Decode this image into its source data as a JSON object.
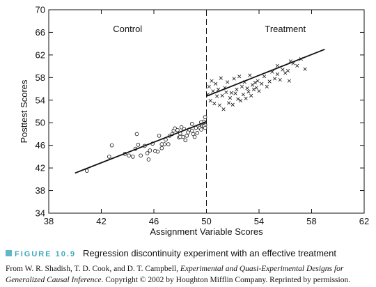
{
  "chart_data": {
    "type": "scatter",
    "xlabel": "Assignment Variable Scores",
    "ylabel": "Posttest Scores",
    "xlim": [
      38,
      62
    ],
    "ylim": [
      34,
      70
    ],
    "xticks": [
      38,
      42,
      46,
      50,
      54,
      58,
      62
    ],
    "yticks": [
      34,
      38,
      42,
      46,
      50,
      54,
      58,
      62,
      66,
      70
    ],
    "cutoff": 50,
    "annotations": [
      "Control",
      "Treatment"
    ],
    "series": [
      {
        "name": "Control",
        "marker": "circle",
        "points": [
          [
            40.9,
            41.5
          ],
          [
            42.6,
            44.0
          ],
          [
            42.8,
            46.0
          ],
          [
            43.8,
            44.5
          ],
          [
            44.1,
            44.2
          ],
          [
            44.4,
            44.0
          ],
          [
            44.6,
            45.4
          ],
          [
            44.8,
            46.1
          ],
          [
            44.7,
            48.0
          ],
          [
            45.0,
            44.2
          ],
          [
            45.3,
            45.9
          ],
          [
            45.5,
            44.6
          ],
          [
            45.6,
            43.5
          ],
          [
            45.7,
            45.1
          ],
          [
            45.9,
            46.3
          ],
          [
            46.1,
            45.0
          ],
          [
            46.3,
            44.9
          ],
          [
            46.4,
            47.7
          ],
          [
            46.6,
            45.5
          ],
          [
            46.8,
            46.2
          ],
          [
            46.9,
            47.0
          ],
          [
            47.1,
            46.2
          ],
          [
            47.2,
            47.7
          ],
          [
            47.4,
            48.0
          ],
          [
            47.5,
            48.6
          ],
          [
            47.6,
            49.0
          ],
          [
            47.8,
            48.7
          ],
          [
            48.0,
            48.1
          ],
          [
            48.1,
            49.2
          ],
          [
            48.2,
            47.5
          ],
          [
            48.4,
            46.9
          ],
          [
            48.5,
            47.7
          ],
          [
            48.6,
            48.3
          ],
          [
            48.7,
            48.8
          ],
          [
            48.9,
            48.6
          ],
          [
            49.0,
            48.0
          ],
          [
            49.1,
            47.5
          ],
          [
            49.2,
            49.1
          ],
          [
            49.3,
            48.2
          ],
          [
            49.4,
            49.4
          ],
          [
            49.5,
            49.1
          ],
          [
            49.6,
            48.8
          ],
          [
            49.7,
            49.4
          ],
          [
            49.8,
            50.2
          ],
          [
            49.9,
            51.0
          ],
          [
            49.9,
            49.6
          ],
          [
            48.3,
            48.9
          ],
          [
            47.9,
            47.4
          ],
          [
            48.9,
            49.8
          ],
          [
            49.6,
            50.1
          ],
          [
            46.6,
            46.2
          ],
          [
            48.0,
            47.5
          ],
          [
            49.8,
            49.4
          ],
          [
            49.9,
            49.1
          ]
        ],
        "fit_line": [
          [
            40,
            41.1
          ],
          [
            50,
            50.2
          ]
        ]
      },
      {
        "name": "Treatment",
        "marker": "x",
        "points": [
          [
            50.1,
            55.0
          ],
          [
            50.2,
            56.4
          ],
          [
            50.3,
            53.9
          ],
          [
            50.4,
            57.4
          ],
          [
            50.5,
            55.6
          ],
          [
            50.6,
            53.4
          ],
          [
            50.7,
            56.9
          ],
          [
            50.8,
            54.7
          ],
          [
            50.9,
            55.9
          ],
          [
            51.0,
            53.1
          ],
          [
            51.1,
            57.9
          ],
          [
            51.2,
            54.8
          ],
          [
            51.3,
            52.4
          ],
          [
            51.4,
            56.2
          ],
          [
            51.5,
            55.4
          ],
          [
            51.6,
            57.2
          ],
          [
            51.7,
            53.5
          ],
          [
            51.8,
            54.4
          ],
          [
            51.9,
            55.3
          ],
          [
            52.0,
            53.2
          ],
          [
            52.1,
            57.8
          ],
          [
            52.2,
            55.2
          ],
          [
            52.3,
            55.9
          ],
          [
            52.4,
            54.2
          ],
          [
            52.5,
            58.2
          ],
          [
            52.6,
            53.9
          ],
          [
            52.7,
            56.4
          ],
          [
            52.8,
            55.0
          ],
          [
            52.9,
            57.2
          ],
          [
            53.0,
            54.3
          ],
          [
            53.1,
            56.1
          ],
          [
            53.2,
            55.5
          ],
          [
            53.3,
            58.4
          ],
          [
            53.4,
            54.8
          ],
          [
            53.5,
            56.7
          ],
          [
            53.6,
            55.9
          ],
          [
            53.7,
            57.1
          ],
          [
            53.8,
            56.2
          ],
          [
            53.9,
            57.4
          ],
          [
            54.0,
            55.6
          ],
          [
            54.2,
            56.9
          ],
          [
            54.4,
            58.2
          ],
          [
            54.6,
            56.4
          ],
          [
            54.8,
            57.3
          ],
          [
            55.0,
            59.0
          ],
          [
            55.2,
            57.8
          ],
          [
            55.4,
            58.6
          ],
          [
            55.6,
            57.6
          ],
          [
            55.8,
            59.4
          ],
          [
            56.0,
            58.8
          ],
          [
            56.2,
            59.2
          ],
          [
            56.3,
            57.4
          ],
          [
            56.6,
            60.5
          ],
          [
            56.9,
            60.1
          ],
          [
            57.2,
            61.3
          ],
          [
            57.5,
            59.5
          ],
          [
            55.4,
            60.1
          ],
          [
            56.4,
            60.9
          ]
        ],
        "fit_line": [
          [
            50,
            54.7
          ],
          [
            59,
            63.0
          ]
        ]
      }
    ]
  },
  "caption": {
    "figure_number": "FIGURE 10.9",
    "text": "Regression discontinuity experiment with an effective treatment"
  },
  "credit": {
    "prefix": "From W. R. Shadish, T. D. Cook, and D. T. Campbell, ",
    "title": "Experimental and Quasi-Experimental Designs for Generalized Causal Inference",
    "suffix": ". Copyright © 2002 by Houghton Mifflin Company. Reprinted by permission."
  },
  "colors": {
    "ink": "#111111",
    "figure_accent": "#3fa7bd"
  }
}
